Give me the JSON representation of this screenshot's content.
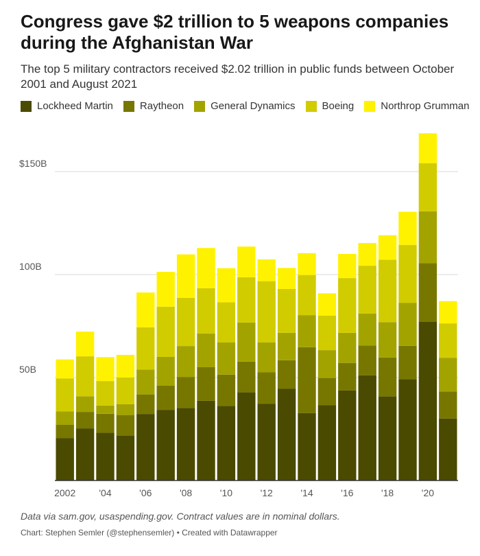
{
  "header": {
    "title": "Congress gave $2 trillion to 5 weapons companies during the Afghanistan War",
    "subtitle": "The top 5 military contractors received $2.02 trillion in public funds between October 2001 and August 2021"
  },
  "footer": {
    "note": "Data via sam.gov, usaspending.gov. Contract values are in nominal dollars.",
    "credit": "Chart: Stephen Semler (@stephensemler) • Created with Datawrapper"
  },
  "chart_data": {
    "type": "bar",
    "stacked": true,
    "title": "Congress gave $2 trillion to 5 weapons companies during the Afghanistan War",
    "subtitle": "The top 5 military contractors received $2.02 trillion in public funds between October 2001 and August 2021",
    "xlabel": "",
    "ylabel": "",
    "ylim": [
      0,
      170
    ],
    "yticks": [
      {
        "value": 50,
        "label": "50B"
      },
      {
        "value": 100,
        "label": "100B"
      },
      {
        "value": 150,
        "label": "$150B"
      }
    ],
    "grid": true,
    "legend_position": "top",
    "categories": [
      "2002",
      "2003",
      "2004",
      "2005",
      "2006",
      "2007",
      "2008",
      "2009",
      "2010",
      "2011",
      "2012",
      "2013",
      "2014",
      "2015",
      "2016",
      "2017",
      "2018",
      "2019",
      "2020",
      "2021"
    ],
    "xtick_labels": [
      {
        "category": "2002",
        "label": "2002"
      },
      {
        "category": "2004",
        "label": "'04"
      },
      {
        "category": "2006",
        "label": "'06"
      },
      {
        "category": "2008",
        "label": "'08"
      },
      {
        "category": "2010",
        "label": "'10"
      },
      {
        "category": "2012",
        "label": "'12"
      },
      {
        "category": "2014",
        "label": "'14"
      },
      {
        "category": "2016",
        "label": "'16"
      },
      {
        "category": "2018",
        "label": "'18"
      },
      {
        "category": "2020",
        "label": "'20"
      }
    ],
    "series": [
      {
        "name": "Lockheed Martin",
        "color": "#4a4a00",
        "values": [
          20.5,
          25.3,
          23.2,
          21.8,
          32.3,
          34.3,
          35.2,
          38.7,
          36.2,
          42.8,
          37.3,
          44.5,
          32.7,
          36.5,
          43.7,
          51.1,
          40.8,
          49.2,
          77.0,
          30.1
        ]
      },
      {
        "name": "Raytheon",
        "color": "#777700",
        "values": [
          6.5,
          8.0,
          9.2,
          10.0,
          9.5,
          11.7,
          15.1,
          16.3,
          15.2,
          14.9,
          15.2,
          13.9,
          32.0,
          13.3,
          13.4,
          14.5,
          18.9,
          16.2,
          28.6,
          13.1
        ]
      },
      {
        "name": "General Dynamics",
        "color": "#a3a300",
        "values": [
          6.6,
          7.6,
          4.0,
          5.3,
          12.1,
          14.0,
          15.0,
          16.4,
          15.6,
          19.0,
          14.6,
          13.3,
          15.6,
          13.5,
          14.6,
          15.4,
          17.2,
          20.9,
          25.1,
          16.3
        ]
      },
      {
        "name": "Boeing",
        "color": "#d1cc00",
        "values": [
          15.9,
          19.4,
          11.9,
          12.9,
          20.5,
          24.4,
          23.4,
          22.0,
          19.5,
          22.0,
          29.7,
          21.3,
          19.5,
          16.8,
          26.6,
          23.3,
          30.3,
          28.1,
          23.4,
          16.8
        ]
      },
      {
        "name": "Northrop Grumman",
        "color": "#fff200",
        "values": [
          9.3,
          12.0,
          11.6,
          11.0,
          16.9,
          16.9,
          21.1,
          19.5,
          16.6,
          14.9,
          10.6,
          10.2,
          10.6,
          10.8,
          11.7,
          11.0,
          11.9,
          16.1,
          14.5,
          10.8
        ]
      }
    ]
  }
}
